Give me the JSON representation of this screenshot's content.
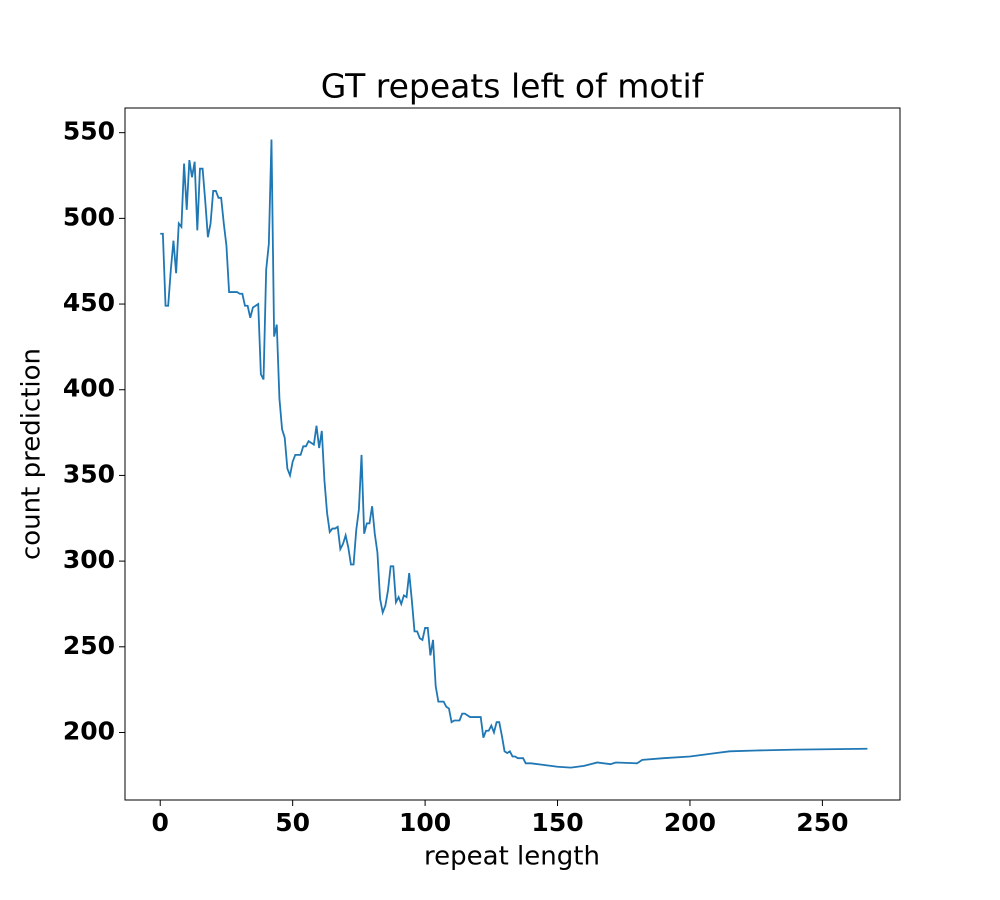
{
  "chart_data": {
    "type": "line",
    "title": "GT repeats left of motif",
    "x_label": "repeat length",
    "y_label": "count prediction",
    "x": [
      0,
      1,
      2,
      3,
      4,
      5,
      6,
      7,
      8,
      9,
      10,
      11,
      12,
      13,
      14,
      15,
      16,
      17,
      18,
      19,
      20,
      21,
      22,
      23,
      24,
      25,
      26,
      27,
      28,
      29,
      30,
      31,
      32,
      33,
      34,
      35,
      36,
      37,
      38,
      39,
      40,
      41,
      42,
      43,
      44,
      45,
      46,
      47,
      48,
      49,
      50,
      51,
      52,
      53,
      54,
      55,
      56,
      57,
      58,
      59,
      60,
      61,
      62,
      63,
      64,
      65,
      66,
      67,
      68,
      69,
      70,
      71,
      72,
      73,
      74,
      75,
      76,
      77,
      78,
      79,
      80,
      81,
      82,
      83,
      84,
      85,
      86,
      87,
      88,
      89,
      90,
      91,
      92,
      93,
      94,
      95,
      96,
      97,
      98,
      99,
      100,
      101,
      102,
      103,
      104,
      105,
      106,
      107,
      108,
      109,
      110,
      111,
      112,
      113,
      114,
      115,
      116,
      117,
      118,
      119,
      120,
      121,
      122,
      123,
      124,
      125,
      126,
      127,
      128,
      129,
      130,
      131,
      132,
      133,
      134,
      135,
      136,
      137,
      138,
      139,
      140,
      145,
      150,
      155,
      160,
      165,
      170,
      172,
      180,
      182,
      190,
      200,
      205,
      210,
      215,
      225,
      240,
      267
    ],
    "series": [
      {
        "name": "count prediction",
        "color": "#1f77b4",
        "values": [
          491,
          491,
          449,
          449,
          470,
          487,
          468,
          497,
          495,
          532,
          505,
          534,
          524,
          533,
          493,
          529,
          529,
          510,
          489,
          497,
          516,
          516,
          512,
          512,
          497,
          484,
          457,
          457,
          457,
          457,
          456,
          456,
          449,
          449,
          442,
          448,
          449,
          450,
          409,
          406,
          470,
          485,
          546,
          431,
          438,
          395,
          377,
          372,
          354,
          350,
          358,
          362,
          362,
          362,
          367,
          367,
          370,
          369,
          368,
          379,
          366,
          376,
          347,
          328,
          317,
          319,
          319,
          320,
          307,
          310,
          315,
          308,
          298,
          298,
          318,
          330,
          362,
          316,
          322,
          322,
          332,
          316,
          305,
          278,
          270,
          274,
          283,
          297,
          297,
          276,
          279,
          275,
          280,
          279,
          293,
          277,
          259,
          259,
          255,
          254,
          261,
          261,
          245,
          254,
          227,
          218,
          218,
          218,
          215,
          214,
          206,
          207,
          207,
          207,
          211,
          211,
          210,
          209,
          209,
          209,
          209,
          209,
          197,
          201,
          201,
          204,
          200,
          206,
          206,
          198,
          189,
          188,
          189,
          186,
          186,
          185,
          185,
          185,
          182,
          182,
          182,
          181,
          180,
          179.5,
          180.5,
          182.5,
          181.5,
          182.5,
          182,
          184,
          185,
          186,
          187,
          188,
          189,
          189.5,
          190,
          190.5
        ]
      }
    ],
    "xlim": [
      -13.3,
      279.3
    ],
    "ylim": [
      160.6,
      564.4
    ],
    "xticks": [
      0,
      50,
      100,
      150,
      200,
      250
    ],
    "yticks": [
      200,
      250,
      300,
      350,
      400,
      450,
      500,
      550
    ]
  }
}
